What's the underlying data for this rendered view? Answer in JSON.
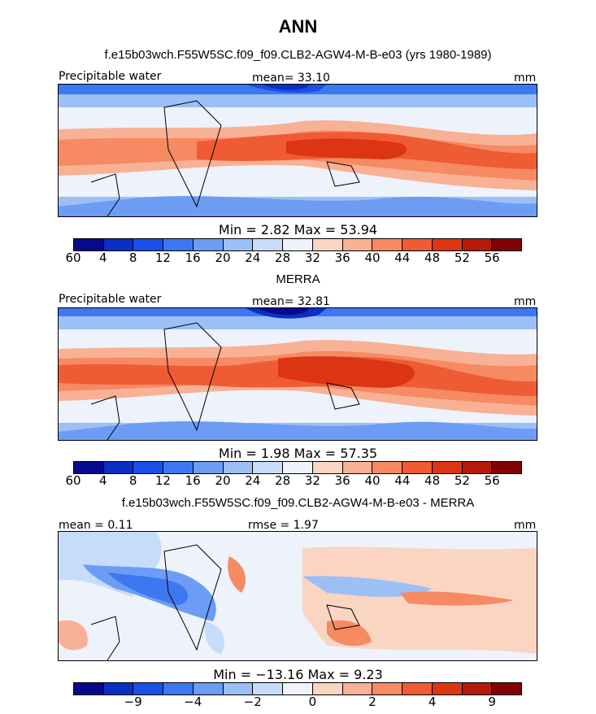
{
  "title": "ANN",
  "panel1": {
    "heading": "f.e15b03wch.F55W5SC.f09_f09.CLB2-AGW4-M-B-e03 (yrs 1980-1989)",
    "field": "Precipitable water",
    "stat": "mean=  33.10",
    "units": "mm",
    "minmax": "Min =    2.82  Max =   53.94"
  },
  "panel2": {
    "heading": "MERRA",
    "field": "Precipitable water",
    "stat": "mean=  32.81",
    "units": "mm",
    "minmax": "Min =    1.98  Max =   57.35"
  },
  "panel3": {
    "heading": "f.e15b03wch.F55W5SC.f09_f09.CLB2-AGW4-M-B-e03 - MERRA",
    "stat_left": "mean =   0.11",
    "stat_mid": "rmse =    1.97",
    "units": "mm",
    "minmax": "Min = −13.16  Max =    9.23"
  },
  "colorbar_abs": {
    "colors": [
      "#08088c",
      "#0a2fc4",
      "#1a50e8",
      "#3d78f0",
      "#6c9cf4",
      "#9cbff6",
      "#c7dcf8",
      "#eef2fa",
      "#fad5c2",
      "#f8b195",
      "#f58a63",
      "#ef5b35",
      "#dc3514",
      "#b51a0a",
      "#820303"
    ],
    "ticks": [
      "4",
      "8",
      "12",
      "16",
      "20",
      "24",
      "28",
      "32",
      "36",
      "40",
      "44",
      "48",
      "52",
      "56",
      "60"
    ]
  },
  "colorbar_diff": {
    "colors": [
      "#08088c",
      "#0a2fc4",
      "#1a50e8",
      "#3d78f0",
      "#6c9cf4",
      "#9cbff6",
      "#c7dcf8",
      "#eef2fa",
      "#fad5c2",
      "#f8b195",
      "#f58a63",
      "#ef5b35",
      "#dc3514",
      "#b51a0a",
      "#820303"
    ],
    "ticks": [
      "−9",
      "−4",
      "−2",
      "0",
      "2",
      "4",
      "9"
    ]
  }
}
